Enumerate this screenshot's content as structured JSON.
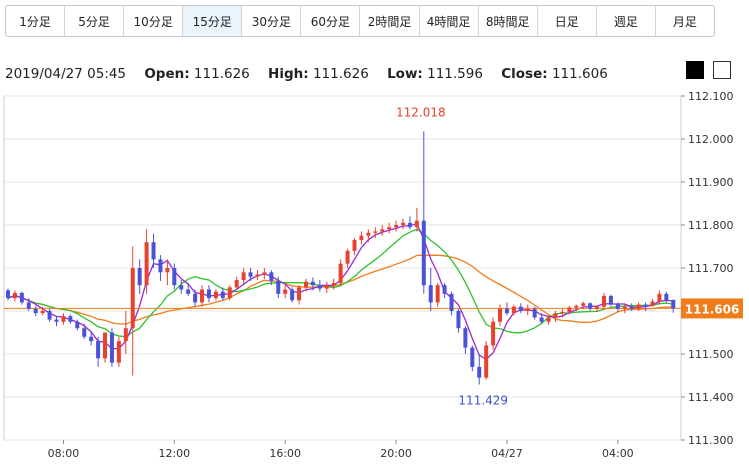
{
  "timeframes": [
    {
      "label": "1分足",
      "active": false
    },
    {
      "label": "5分足",
      "active": false
    },
    {
      "label": "10分足",
      "active": false
    },
    {
      "label": "15分足",
      "active": true
    },
    {
      "label": "30分足",
      "active": false
    },
    {
      "label": "60分足",
      "active": false
    },
    {
      "label": "2時間足",
      "active": false
    },
    {
      "label": "4時間足",
      "active": false
    },
    {
      "label": "8時間足",
      "active": false
    },
    {
      "label": "日足",
      "active": false
    },
    {
      "label": "週足",
      "active": false
    },
    {
      "label": "月足",
      "active": false
    }
  ],
  "info": {
    "datetime": "2019/04/27 05:45",
    "open_label": "Open:",
    "open": "111.626",
    "high_label": "High:",
    "high": "111.626",
    "low_label": "Low:",
    "low": "111.596",
    "close_label": "Close:",
    "close": "111.606"
  },
  "theme_buttons": {
    "dark": "#000000",
    "light": "#ffffff"
  },
  "colors": {
    "up": "#e8412e",
    "down": "#4c52d8",
    "ma_short": "#9b27d6",
    "ma_mid": "#2ec22e",
    "ma_long": "#f07d1a",
    "price_line": "#f07d1a",
    "high_label": "#e8412e",
    "low_label": "#3a55c4",
    "grid": "#e6e6e6",
    "plot_bg": "#ffffff"
  },
  "chart_data": {
    "type": "candlestick",
    "symbol_precision": 3,
    "ylim": [
      111.3,
      112.1
    ],
    "y_ticks": [
      "111.300",
      "111.400",
      "111.500",
      "111.600",
      "111.700",
      "111.800",
      "111.900",
      "112.000",
      "112.100"
    ],
    "x_ticks": [
      "08:00",
      "12:00",
      "16:00",
      "20:00",
      "04/27",
      "04:00"
    ],
    "x_tick_index": [
      8,
      24,
      40,
      56,
      72,
      88
    ],
    "current_price": "111.606",
    "high_annotation": {
      "label": "112.018",
      "index": 60
    },
    "low_annotation": {
      "label": "111.429",
      "index": 68
    },
    "candles": [
      [
        111.648,
        111.652,
        111.625,
        111.63
      ],
      [
        111.63,
        111.648,
        111.622,
        111.642
      ],
      [
        111.642,
        111.645,
        111.615,
        111.62
      ],
      [
        111.62,
        111.63,
        111.6,
        111.605
      ],
      [
        111.605,
        111.612,
        111.588,
        111.595
      ],
      [
        111.595,
        111.61,
        111.59,
        111.6
      ],
      [
        111.6,
        111.605,
        111.575,
        111.58
      ],
      [
        111.58,
        111.588,
        111.565,
        111.575
      ],
      [
        111.575,
        111.595,
        111.568,
        111.588
      ],
      [
        111.588,
        111.592,
        111.57,
        111.575
      ],
      [
        111.575,
        111.58,
        111.555,
        111.56
      ],
      [
        111.56,
        111.57,
        111.535,
        111.54
      ],
      [
        111.54,
        111.55,
        111.52,
        111.53
      ],
      [
        111.53,
        111.54,
        111.47,
        111.49
      ],
      [
        111.49,
        111.55,
        111.48,
        111.55
      ],
      [
        111.55,
        111.56,
        111.47,
        111.48
      ],
      [
        111.48,
        111.54,
        111.47,
        111.53
      ],
      [
        111.53,
        111.6,
        111.5,
        111.56
      ],
      [
        111.56,
        111.75,
        111.45,
        111.7
      ],
      [
        111.7,
        111.72,
        111.64,
        111.66
      ],
      [
        111.66,
        111.79,
        111.64,
        111.76
      ],
      [
        111.76,
        111.78,
        111.7,
        111.72
      ],
      [
        111.72,
        111.73,
        111.67,
        111.69
      ],
      [
        111.69,
        111.72,
        111.66,
        111.7
      ],
      [
        111.7,
        111.71,
        111.65,
        111.66
      ],
      [
        111.66,
        111.672,
        111.64,
        111.65
      ],
      [
        111.65,
        111.665,
        111.635,
        111.64
      ],
      [
        111.64,
        111.65,
        111.61,
        111.62
      ],
      [
        111.62,
        111.66,
        111.61,
        111.65
      ],
      [
        111.65,
        111.66,
        111.62,
        111.63
      ],
      [
        111.63,
        111.65,
        111.625,
        111.645
      ],
      [
        111.645,
        111.655,
        111.625,
        111.63
      ],
      [
        111.63,
        111.66,
        111.625,
        111.655
      ],
      [
        111.655,
        111.68,
        111.65,
        111.672
      ],
      [
        111.672,
        111.7,
        111.66,
        111.69
      ],
      [
        111.69,
        111.7,
        111.67,
        111.68
      ],
      [
        111.68,
        111.695,
        111.672,
        111.685
      ],
      [
        111.685,
        111.7,
        111.675,
        111.69
      ],
      [
        111.69,
        111.695,
        111.66,
        111.67
      ],
      [
        111.67,
        111.68,
        111.63,
        111.64
      ],
      [
        111.64,
        111.66,
        111.63,
        111.65
      ],
      [
        111.65,
        111.655,
        111.62,
        111.625
      ],
      [
        111.625,
        111.66,
        111.615,
        111.655
      ],
      [
        111.655,
        111.675,
        111.645,
        111.668
      ],
      [
        111.668,
        111.678,
        111.648,
        111.66
      ],
      [
        111.66,
        111.672,
        111.645,
        111.652
      ],
      [
        111.652,
        111.668,
        111.642,
        111.66
      ],
      [
        111.66,
        111.675,
        111.65,
        111.665
      ],
      [
        111.665,
        111.72,
        111.66,
        111.71
      ],
      [
        111.71,
        111.745,
        111.7,
        111.74
      ],
      [
        111.74,
        111.77,
        111.73,
        111.765
      ],
      [
        111.765,
        111.785,
        111.755,
        111.775
      ],
      [
        111.775,
        111.79,
        111.76,
        111.782
      ],
      [
        111.782,
        111.795,
        111.77,
        111.785
      ],
      [
        111.785,
        111.8,
        111.775,
        111.79
      ],
      [
        111.79,
        111.805,
        111.78,
        111.795
      ],
      [
        111.795,
        111.81,
        111.785,
        111.8
      ],
      [
        111.8,
        111.815,
        111.79,
        111.805
      ],
      [
        111.805,
        111.82,
        111.79,
        111.795
      ],
      [
        111.795,
        111.84,
        111.785,
        111.81
      ],
      [
        111.81,
        112.018,
        111.64,
        111.66
      ],
      [
        111.66,
        111.7,
        111.6,
        111.62
      ],
      [
        111.62,
        111.665,
        111.61,
        111.66
      ],
      [
        111.66,
        111.665,
        111.63,
        111.64
      ],
      [
        111.64,
        111.645,
        111.59,
        111.6
      ],
      [
        111.6,
        111.605,
        111.55,
        111.56
      ],
      [
        111.56,
        111.565,
        111.5,
        111.515
      ],
      [
        111.515,
        111.52,
        111.46,
        111.47
      ],
      [
        111.47,
        111.5,
        111.429,
        111.445
      ],
      [
        111.445,
        111.53,
        111.44,
        111.52
      ],
      [
        111.52,
        111.585,
        111.51,
        111.575
      ],
      [
        111.575,
        111.615,
        111.565,
        111.605
      ],
      [
        111.605,
        111.62,
        111.59,
        111.595
      ],
      [
        111.595,
        111.615,
        111.59,
        111.61
      ],
      [
        111.61,
        111.618,
        111.595,
        111.6
      ],
      [
        111.6,
        111.615,
        111.59,
        111.605
      ],
      [
        111.605,
        111.61,
        111.58,
        111.585
      ],
      [
        111.585,
        111.595,
        111.57,
        111.575
      ],
      [
        111.575,
        111.59,
        111.568,
        111.585
      ],
      [
        111.585,
        111.6,
        111.575,
        111.595
      ],
      [
        111.595,
        111.605,
        111.585,
        111.598
      ],
      [
        111.598,
        111.612,
        111.592,
        111.608
      ],
      [
        111.608,
        111.615,
        111.6,
        111.612
      ],
      [
        111.612,
        111.622,
        111.605,
        111.618
      ],
      [
        111.618,
        111.62,
        111.6,
        111.605
      ],
      [
        111.605,
        111.612,
        111.598,
        111.61
      ],
      [
        111.61,
        111.642,
        111.605,
        111.635
      ],
      [
        111.635,
        111.638,
        111.61,
        111.615
      ],
      [
        111.615,
        111.62,
        111.598,
        111.605
      ],
      [
        111.605,
        111.615,
        111.595,
        111.61
      ],
      [
        111.61,
        111.618,
        111.6,
        111.605
      ],
      [
        111.605,
        111.62,
        111.6,
        111.615
      ],
      [
        111.615,
        111.62,
        111.6,
        111.612
      ],
      [
        111.612,
        111.628,
        111.61,
        111.622
      ],
      [
        111.622,
        111.648,
        111.615,
        111.64
      ],
      [
        111.64,
        111.645,
        111.62,
        111.625
      ],
      [
        111.626,
        111.626,
        111.596,
        111.606
      ]
    ]
  }
}
